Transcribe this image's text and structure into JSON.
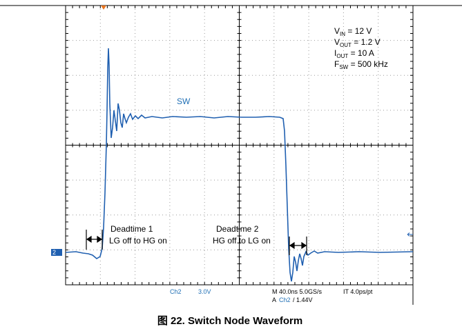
{
  "conditions": [
    {
      "main": "V",
      "sub": "IN",
      "rest": " = 12 V"
    },
    {
      "main": "V",
      "sub": "OUT",
      "rest": " = 1.2 V"
    },
    {
      "main": "I",
      "sub": "OUT",
      "rest": " = 10 A"
    },
    {
      "main": "F",
      "sub": "SW",
      "rest": " = 500 kHz"
    }
  ],
  "trace_label": "SW",
  "channel_marker": "2",
  "annotations": [
    {
      "line1": "Deadtime 1",
      "line2": "LG off to HG on"
    },
    {
      "line1": "Deadtime 2",
      "line2": "HG off to LG on"
    }
  ],
  "readout": {
    "channel": "Ch2",
    "scale": "3.0V",
    "timebase": "M 40.0ns 5.0GS/s",
    "resolution": "IT 4.0ps/pt",
    "trigger_prefix": "A",
    "trigger_channel": "Ch2",
    "trigger_level": "/ 1.44V"
  },
  "caption": "图 22. Switch Node Waveform"
}
